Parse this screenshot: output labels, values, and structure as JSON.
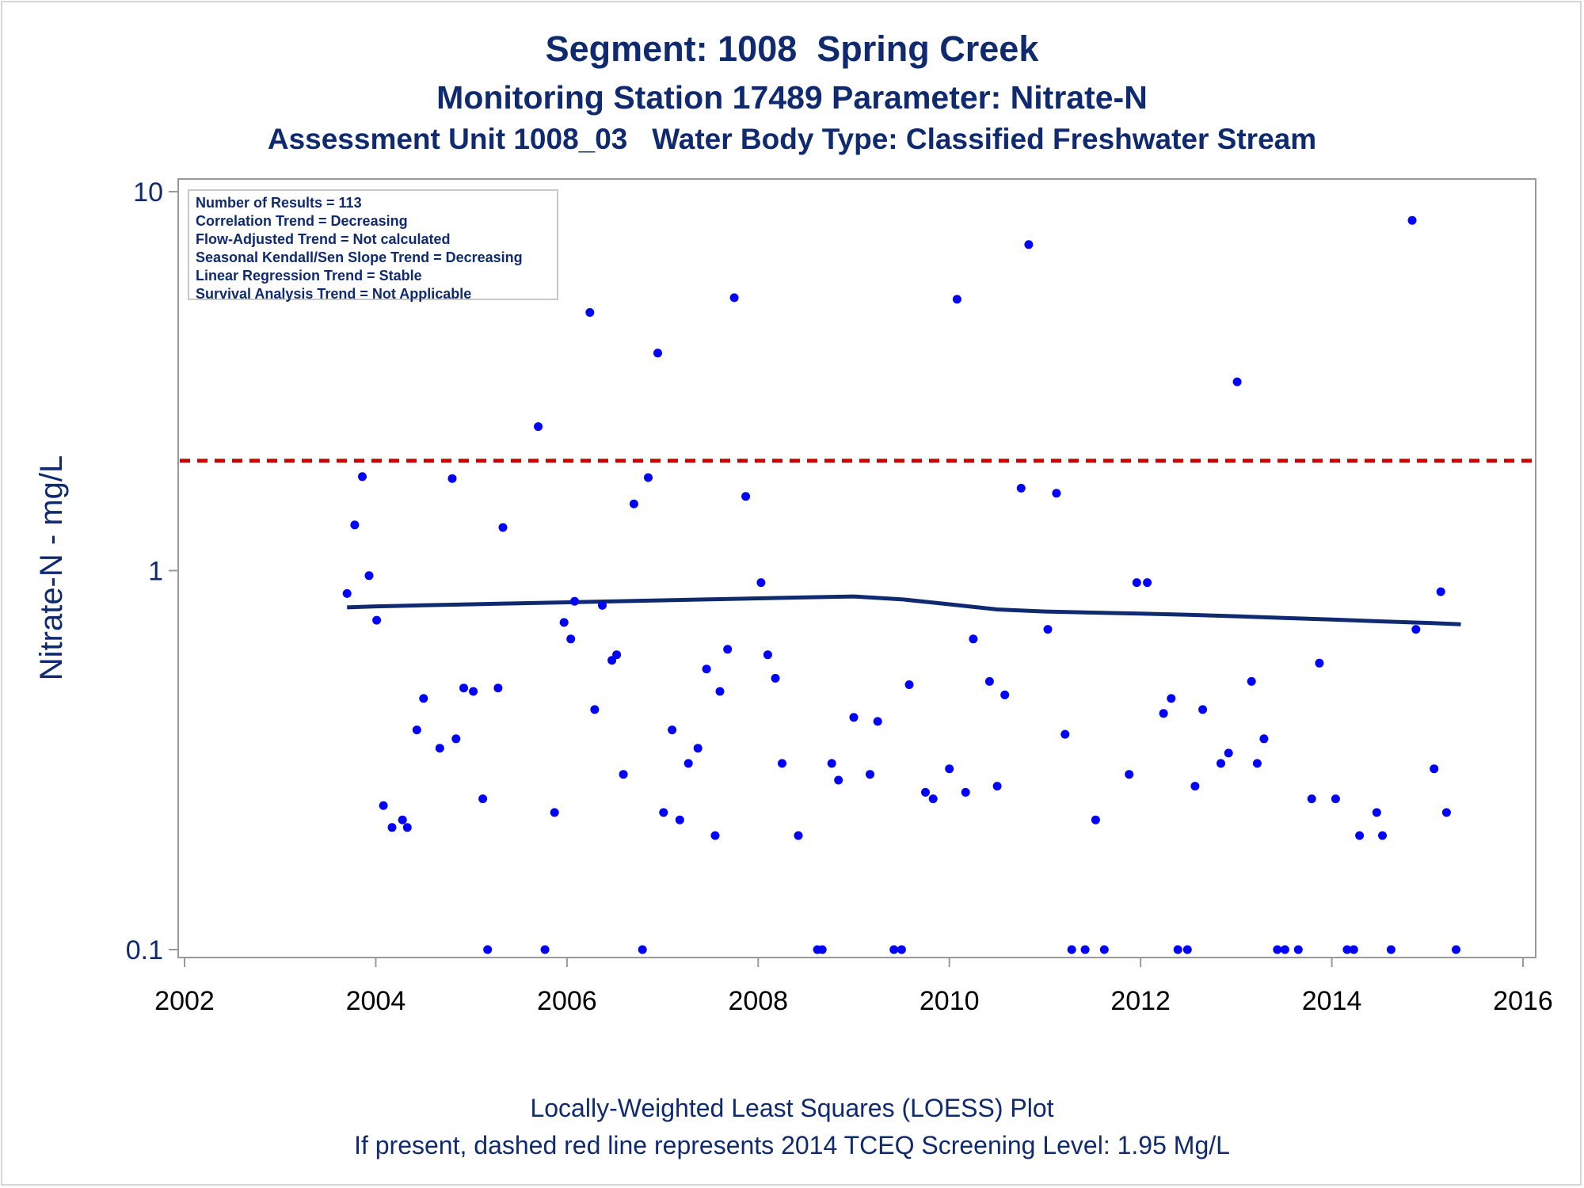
{
  "titles": {
    "line1": "Segment: 1008  Spring Creek",
    "line2": "Monitoring Station 17489 Parameter: Nitrate-N",
    "line3": "Assessment Unit 1008_03   Water Body Type: Classified Freshwater Stream"
  },
  "stats_box": [
    "Number of Results = 113",
    "Correlation Trend = Decreasing",
    "Flow-Adjusted Trend = Not calculated",
    "Seasonal Kendall/Sen Slope Trend = Decreasing",
    "Linear Regression Trend = Stable",
    "Survival Analysis Trend = Not Applicable"
  ],
  "footnotes": {
    "line1": "Locally-Weighted Least Squares (LOESS) Plot",
    "line2": "If present, dashed red line represents 2014 TCEQ Screening Level: 1.95 Mg/L"
  },
  "chart_data": {
    "type": "scatter",
    "ylabel": "Nitrate-N - mg/L",
    "xlabel": "",
    "y_scale": "log",
    "xlim": [
      2002.0,
      2016.0
    ],
    "ylim": [
      0.1,
      10
    ],
    "x_ticks": [
      2002,
      2004,
      2006,
      2008,
      2010,
      2012,
      2014,
      2016
    ],
    "x_tick_labels": [
      "2002",
      "2004",
      "2006",
      "2008",
      "2010",
      "2012",
      "2014",
      "2016"
    ],
    "y_ticks": [
      0.1,
      1,
      10
    ],
    "y_tick_labels": [
      "0.1",
      "1",
      "10"
    ],
    "screening_level": {
      "value": 1.95,
      "color": "#cc0000",
      "style": "dashed"
    },
    "colors": {
      "points": "#0000ff",
      "loess": "#0f2a6e",
      "text": "#0f2a6e",
      "axis": "#999999"
    },
    "points": [
      {
        "x": 2003.7,
        "y": 0.87
      },
      {
        "x": 2003.78,
        "y": 1.32
      },
      {
        "x": 2003.86,
        "y": 1.77
      },
      {
        "x": 2003.93,
        "y": 0.97
      },
      {
        "x": 2004.01,
        "y": 0.74
      },
      {
        "x": 2004.08,
        "y": 0.24
      },
      {
        "x": 2004.17,
        "y": 0.21
      },
      {
        "x": 2004.28,
        "y": 0.22
      },
      {
        "x": 2004.33,
        "y": 0.21
      },
      {
        "x": 2004.43,
        "y": 0.38
      },
      {
        "x": 2004.5,
        "y": 0.46
      },
      {
        "x": 2004.67,
        "y": 0.34
      },
      {
        "x": 2004.8,
        "y": 1.75
      },
      {
        "x": 2004.84,
        "y": 0.36
      },
      {
        "x": 2004.92,
        "y": 0.49
      },
      {
        "x": 2005.02,
        "y": 0.48
      },
      {
        "x": 2005.12,
        "y": 0.25
      },
      {
        "x": 2005.17,
        "y": 0.1
      },
      {
        "x": 2005.28,
        "y": 0.49
      },
      {
        "x": 2005.33,
        "y": 1.3
      },
      {
        "x": 2005.7,
        "y": 2.4
      },
      {
        "x": 2005.77,
        "y": 0.1
      },
      {
        "x": 2005.87,
        "y": 0.23
      },
      {
        "x": 2005.97,
        "y": 0.73
      },
      {
        "x": 2006.04,
        "y": 0.66
      },
      {
        "x": 2006.08,
        "y": 0.83
      },
      {
        "x": 2006.24,
        "y": 4.8
      },
      {
        "x": 2006.29,
        "y": 0.43
      },
      {
        "x": 2006.37,
        "y": 0.81
      },
      {
        "x": 2006.47,
        "y": 0.58
      },
      {
        "x": 2006.52,
        "y": 0.6
      },
      {
        "x": 2006.59,
        "y": 0.29
      },
      {
        "x": 2006.7,
        "y": 1.5
      },
      {
        "x": 2006.79,
        "y": 0.1
      },
      {
        "x": 2006.85,
        "y": 1.76
      },
      {
        "x": 2006.95,
        "y": 3.75
      },
      {
        "x": 2007.01,
        "y": 0.23
      },
      {
        "x": 2007.1,
        "y": 0.38
      },
      {
        "x": 2007.18,
        "y": 0.22
      },
      {
        "x": 2007.27,
        "y": 0.31
      },
      {
        "x": 2007.37,
        "y": 0.34
      },
      {
        "x": 2007.46,
        "y": 0.55
      },
      {
        "x": 2007.55,
        "y": 0.2
      },
      {
        "x": 2007.6,
        "y": 0.48
      },
      {
        "x": 2007.68,
        "y": 0.62
      },
      {
        "x": 2007.75,
        "y": 5.25
      },
      {
        "x": 2007.87,
        "y": 1.57
      },
      {
        "x": 2008.03,
        "y": 0.93
      },
      {
        "x": 2008.1,
        "y": 0.6
      },
      {
        "x": 2008.18,
        "y": 0.52
      },
      {
        "x": 2008.25,
        "y": 0.31
      },
      {
        "x": 2008.42,
        "y": 0.2
      },
      {
        "x": 2008.62,
        "y": 0.1
      },
      {
        "x": 2008.67,
        "y": 0.1
      },
      {
        "x": 2008.77,
        "y": 0.31
      },
      {
        "x": 2008.84,
        "y": 0.28
      },
      {
        "x": 2009.0,
        "y": 0.41
      },
      {
        "x": 2009.17,
        "y": 0.29
      },
      {
        "x": 2009.25,
        "y": 0.4
      },
      {
        "x": 2009.42,
        "y": 0.1
      },
      {
        "x": 2009.5,
        "y": 0.1
      },
      {
        "x": 2009.58,
        "y": 0.5
      },
      {
        "x": 2009.75,
        "y": 0.26
      },
      {
        "x": 2009.83,
        "y": 0.25
      },
      {
        "x": 2010.0,
        "y": 0.3
      },
      {
        "x": 2010.08,
        "y": 5.2
      },
      {
        "x": 2010.17,
        "y": 0.26
      },
      {
        "x": 2010.25,
        "y": 0.66
      },
      {
        "x": 2010.42,
        "y": 0.51
      },
      {
        "x": 2010.5,
        "y": 0.27
      },
      {
        "x": 2010.58,
        "y": 0.47
      },
      {
        "x": 2010.75,
        "y": 1.65
      },
      {
        "x": 2010.83,
        "y": 7.25
      },
      {
        "x": 2011.03,
        "y": 0.7
      },
      {
        "x": 2011.12,
        "y": 1.6
      },
      {
        "x": 2011.21,
        "y": 0.37
      },
      {
        "x": 2011.28,
        "y": 0.1
      },
      {
        "x": 2011.42,
        "y": 0.1
      },
      {
        "x": 2011.53,
        "y": 0.22
      },
      {
        "x": 2011.62,
        "y": 0.1
      },
      {
        "x": 2011.88,
        "y": 0.29
      },
      {
        "x": 2011.96,
        "y": 0.93
      },
      {
        "x": 2012.07,
        "y": 0.93
      },
      {
        "x": 2012.24,
        "y": 0.42
      },
      {
        "x": 2012.32,
        "y": 0.46
      },
      {
        "x": 2012.39,
        "y": 0.1
      },
      {
        "x": 2012.49,
        "y": 0.1
      },
      {
        "x": 2012.57,
        "y": 0.27
      },
      {
        "x": 2012.65,
        "y": 0.43
      },
      {
        "x": 2012.84,
        "y": 0.31
      },
      {
        "x": 2012.92,
        "y": 0.33
      },
      {
        "x": 2013.01,
        "y": 3.15
      },
      {
        "x": 2013.16,
        "y": 0.51
      },
      {
        "x": 2013.22,
        "y": 0.31
      },
      {
        "x": 2013.29,
        "y": 0.36
      },
      {
        "x": 2013.43,
        "y": 0.1
      },
      {
        "x": 2013.51,
        "y": 0.1
      },
      {
        "x": 2013.65,
        "y": 0.1
      },
      {
        "x": 2013.79,
        "y": 0.25
      },
      {
        "x": 2013.87,
        "y": 0.57
      },
      {
        "x": 2014.04,
        "y": 0.25
      },
      {
        "x": 2014.16,
        "y": 0.1
      },
      {
        "x": 2014.23,
        "y": 0.1
      },
      {
        "x": 2014.29,
        "y": 0.2
      },
      {
        "x": 2014.47,
        "y": 0.23
      },
      {
        "x": 2014.53,
        "y": 0.2
      },
      {
        "x": 2014.62,
        "y": 0.1
      },
      {
        "x": 2014.84,
        "y": 8.4
      },
      {
        "x": 2014.88,
        "y": 0.7
      },
      {
        "x": 2015.07,
        "y": 0.3
      },
      {
        "x": 2015.14,
        "y": 0.88
      },
      {
        "x": 2015.2,
        "y": 0.23
      },
      {
        "x": 2015.3,
        "y": 0.1
      }
    ],
    "loess": [
      {
        "x": 2003.7,
        "y": 0.8
      },
      {
        "x": 2004.0,
        "y": 0.805
      },
      {
        "x": 2004.5,
        "y": 0.81
      },
      {
        "x": 2005.0,
        "y": 0.815
      },
      {
        "x": 2005.5,
        "y": 0.82
      },
      {
        "x": 2006.0,
        "y": 0.825
      },
      {
        "x": 2006.5,
        "y": 0.83
      },
      {
        "x": 2007.0,
        "y": 0.835
      },
      {
        "x": 2007.5,
        "y": 0.84
      },
      {
        "x": 2008.0,
        "y": 0.845
      },
      {
        "x": 2008.5,
        "y": 0.85
      },
      {
        "x": 2009.0,
        "y": 0.855
      },
      {
        "x": 2009.5,
        "y": 0.84
      },
      {
        "x": 2010.0,
        "y": 0.815
      },
      {
        "x": 2010.5,
        "y": 0.79
      },
      {
        "x": 2011.0,
        "y": 0.78
      },
      {
        "x": 2011.5,
        "y": 0.775
      },
      {
        "x": 2012.0,
        "y": 0.77
      },
      {
        "x": 2012.5,
        "y": 0.765
      },
      {
        "x": 2013.0,
        "y": 0.758
      },
      {
        "x": 2013.5,
        "y": 0.75
      },
      {
        "x": 2014.0,
        "y": 0.743
      },
      {
        "x": 2014.5,
        "y": 0.735
      },
      {
        "x": 2015.0,
        "y": 0.728
      },
      {
        "x": 2015.35,
        "y": 0.722
      }
    ]
  }
}
